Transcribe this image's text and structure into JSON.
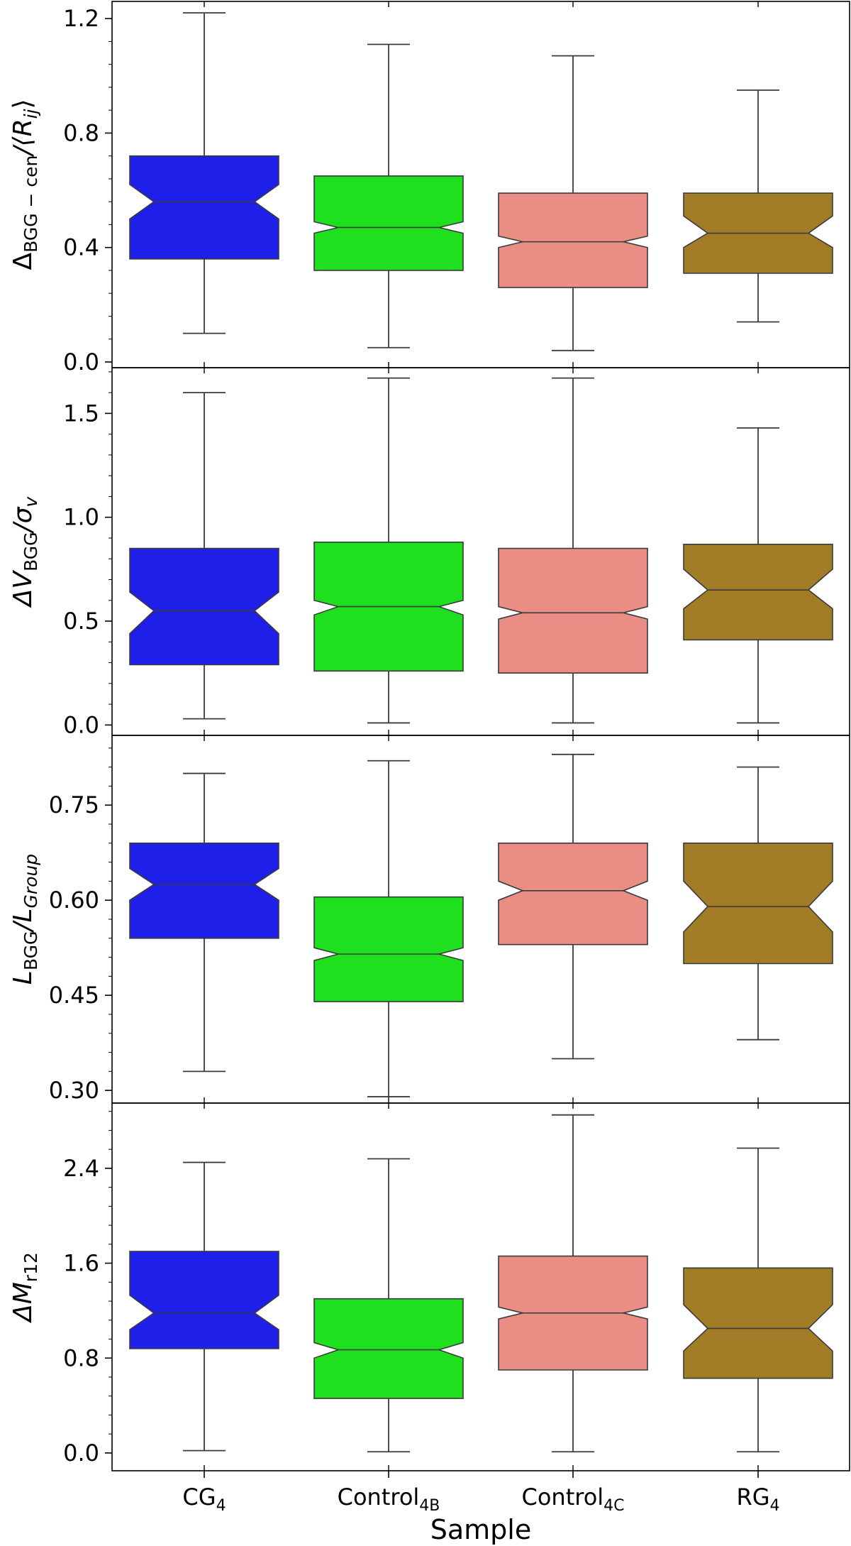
{
  "figure": {
    "xlabel": "Sample",
    "categories": [
      {
        "base": "CG",
        "sub": "4"
      },
      {
        "base": "Control",
        "sub": "4B"
      },
      {
        "base": "Control",
        "sub": "4C"
      },
      {
        "base": "RG",
        "sub": "4"
      }
    ],
    "colors": [
      "#1f1fea",
      "#1fe01f",
      "#ea8d84",
      "#a27c26"
    ],
    "edge_color": "#3b3b3b"
  },
  "chart_data": [
    {
      "type": "box",
      "notched": true,
      "ylabel": {
        "main": "Δ",
        "sub": "BGG − cen",
        "rest": "/⟨R",
        "sub2": "ij",
        "end": "⟩"
      },
      "ylim": [
        -0.02,
        1.26
      ],
      "yticks": [
        0.0,
        0.4,
        0.8,
        1.2
      ],
      "yticklabels": [
        "0.0",
        "0.4",
        "0.8",
        "1.2"
      ],
      "boxes": [
        {
          "whislo": 0.1,
          "q1": 0.36,
          "notch_lo": 0.5,
          "med": 0.56,
          "notch_hi": 0.62,
          "q3": 0.72,
          "whishi": 1.22
        },
        {
          "whislo": 0.05,
          "q1": 0.32,
          "notch_lo": 0.45,
          "med": 0.47,
          "notch_hi": 0.49,
          "q3": 0.65,
          "whishi": 1.11
        },
        {
          "whislo": 0.04,
          "q1": 0.26,
          "notch_lo": 0.4,
          "med": 0.42,
          "notch_hi": 0.44,
          "q3": 0.59,
          "whishi": 1.07
        },
        {
          "whislo": 0.14,
          "q1": 0.31,
          "notch_lo": 0.4,
          "med": 0.45,
          "notch_hi": 0.51,
          "q3": 0.59,
          "whishi": 0.95
        }
      ]
    },
    {
      "type": "box",
      "notched": true,
      "ylabel": {
        "main": "ΔV",
        "sub": "BGG",
        "rest": "/σ",
        "sub2": "v",
        "end": ""
      },
      "ylim": [
        -0.05,
        1.72
      ],
      "yticks": [
        0.0,
        0.5,
        1.0,
        1.5
      ],
      "yticklabels": [
        "0.0",
        "0.5",
        "1.0",
        "1.5"
      ],
      "boxes": [
        {
          "whislo": 0.03,
          "q1": 0.29,
          "notch_lo": 0.44,
          "med": 0.55,
          "notch_hi": 0.64,
          "q3": 0.85,
          "whishi": 1.6
        },
        {
          "whislo": 0.01,
          "q1": 0.26,
          "notch_lo": 0.53,
          "med": 0.57,
          "notch_hi": 0.6,
          "q3": 0.88,
          "whishi": 1.67
        },
        {
          "whislo": 0.01,
          "q1": 0.25,
          "notch_lo": 0.51,
          "med": 0.54,
          "notch_hi": 0.57,
          "q3": 0.85,
          "whishi": 1.67
        },
        {
          "whislo": 0.01,
          "q1": 0.41,
          "notch_lo": 0.56,
          "med": 0.65,
          "notch_hi": 0.75,
          "q3": 0.87,
          "whishi": 1.43
        }
      ]
    },
    {
      "type": "box",
      "notched": true,
      "ylabel": {
        "main": "L",
        "sub": "BGG",
        "rest": "/L",
        "sub2": "Group",
        "end": ""
      },
      "ylim": [
        0.28,
        0.86
      ],
      "yticks": [
        0.3,
        0.45,
        0.6,
        0.75
      ],
      "yticklabels": [
        "0.30",
        "0.45",
        "0.60",
        "0.75"
      ],
      "boxes": [
        {
          "whislo": 0.33,
          "q1": 0.54,
          "notch_lo": 0.6,
          "med": 0.625,
          "notch_hi": 0.65,
          "q3": 0.69,
          "whishi": 0.8
        },
        {
          "whislo": 0.29,
          "q1": 0.44,
          "notch_lo": 0.505,
          "med": 0.515,
          "notch_hi": 0.525,
          "q3": 0.605,
          "whishi": 0.82
        },
        {
          "whislo": 0.35,
          "q1": 0.53,
          "notch_lo": 0.6,
          "med": 0.615,
          "notch_hi": 0.63,
          "q3": 0.69,
          "whishi": 0.83
        },
        {
          "whislo": 0.38,
          "q1": 0.5,
          "notch_lo": 0.55,
          "med": 0.59,
          "notch_hi": 0.63,
          "q3": 0.69,
          "whishi": 0.81
        }
      ]
    },
    {
      "type": "box",
      "notched": true,
      "ylabel": {
        "main": "ΔM",
        "sub": "r12",
        "rest": "",
        "sub2": "",
        "end": ""
      },
      "ylim": [
        -0.15,
        2.95
      ],
      "yticks": [
        0.0,
        0.8,
        1.6,
        2.4
      ],
      "yticklabels": [
        "0.0",
        "0.8",
        "1.6",
        "2.4"
      ],
      "boxes": [
        {
          "whislo": 0.02,
          "q1": 0.88,
          "notch_lo": 1.04,
          "med": 1.18,
          "notch_hi": 1.33,
          "q3": 1.7,
          "whishi": 2.45
        },
        {
          "whislo": 0.01,
          "q1": 0.46,
          "notch_lo": 0.8,
          "med": 0.87,
          "notch_hi": 0.93,
          "q3": 1.3,
          "whishi": 2.48
        },
        {
          "whislo": 0.01,
          "q1": 0.7,
          "notch_lo": 1.13,
          "med": 1.18,
          "notch_hi": 1.23,
          "q3": 1.66,
          "whishi": 2.85
        },
        {
          "whislo": 0.01,
          "q1": 0.63,
          "notch_lo": 0.86,
          "med": 1.05,
          "notch_hi": 1.25,
          "q3": 1.56,
          "whishi": 2.57
        }
      ]
    }
  ]
}
